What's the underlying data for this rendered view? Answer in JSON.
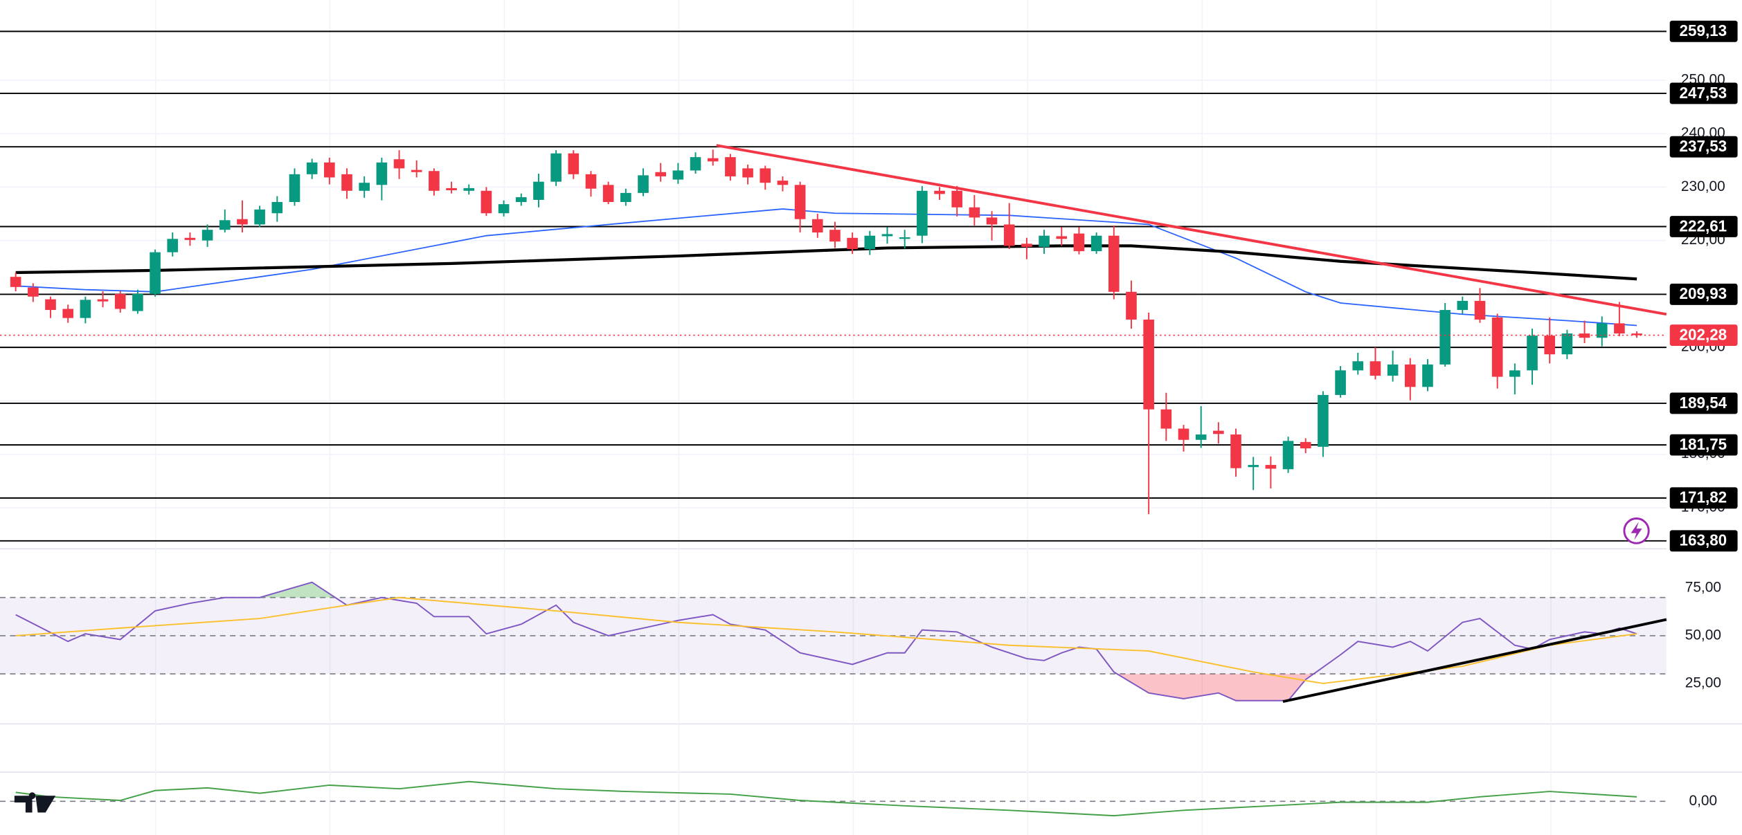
{
  "chart_data": [
    {
      "type": "candlestick",
      "xlim": [
        -0.9,
        94.7
      ],
      "ylim": [
        162.1,
        265.0
      ],
      "yticks": [
        {
          "value": 170,
          "label": "170,00"
        },
        {
          "value": 180,
          "label": "180,00"
        },
        {
          "value": 190,
          "label": "190,00"
        },
        {
          "value": 200,
          "label": "200,00"
        },
        {
          "value": 210,
          "label": "210,00"
        },
        {
          "value": 220,
          "label": "220,00"
        },
        {
          "value": 230,
          "label": "230,00"
        },
        {
          "value": 240,
          "label": "240,00"
        },
        {
          "value": 250,
          "label": "250,00"
        }
      ],
      "grid": true,
      "up_color": "#089981",
      "down_color": "#f23645",
      "open": [
        213.2,
        211.2,
        209.0,
        207.2,
        205.5,
        209.0,
        210.0,
        206.8,
        210.0,
        217.8,
        220.5,
        220.0,
        222.0,
        224.0,
        223.0,
        225.1,
        227.2,
        232.4,
        234.6,
        232.4,
        229.3,
        230.4,
        235.2,
        233.2,
        233.0,
        229.8,
        229.3,
        229.3,
        225.1,
        227.2,
        227.6,
        231.0,
        236.3,
        232.4,
        230.4,
        227.2,
        228.9,
        232.8,
        231.4,
        233.1,
        235.4,
        235.6,
        233.5,
        233.5,
        231.2,
        230.4,
        224.0,
        222.0,
        220.5,
        218.4,
        220.8,
        220.3,
        220.9,
        229.3,
        229.3,
        226.2,
        224.3,
        223.0,
        219.4,
        218.8,
        220.8,
        221.3,
        218.0,
        220.9,
        210.4,
        205.2,
        188.4,
        184.8,
        182.7,
        184.4,
        183.7,
        177.6,
        178.0,
        177.2,
        182.3,
        181.4,
        191.1,
        195.7,
        197.4,
        194.7,
        196.8,
        192.6,
        196.8,
        207.0,
        208.7,
        205.6,
        194.5,
        195.7,
        202.2,
        198.7,
        202.6,
        201.8,
        204.5,
        202.6
      ],
      "high": [
        214,
        212,
        209.5,
        208,
        209.5,
        210.5,
        210.5,
        210.8,
        218.3,
        221.5,
        221.5,
        223,
        225.8,
        227.5,
        226.5,
        228.3,
        233.5,
        235.3,
        235.5,
        233.5,
        232,
        235.5,
        236.9,
        235,
        233.5,
        231,
        230.5,
        230,
        227.5,
        228.8,
        232.5,
        236.9,
        236.9,
        233,
        231,
        229.7,
        233.5,
        234.5,
        234.5,
        236.5,
        237,
        236.2,
        234.2,
        234,
        232,
        231,
        225,
        223.5,
        221.5,
        221.8,
        222.5,
        222,
        230.2,
        230,
        230.2,
        228.5,
        225.5,
        227,
        220.5,
        222,
        222.5,
        222.5,
        221.5,
        222.8,
        212.5,
        206.5,
        191.5,
        185.5,
        189,
        186,
        184.8,
        179.5,
        179.6,
        183.3,
        183,
        191.8,
        196.5,
        199,
        200,
        199.4,
        198,
        197.8,
        208.3,
        209.5,
        211.1,
        206.3,
        197,
        203.5,
        205.6,
        203.3,
        205,
        205.8,
        208.5,
        203
      ],
      "low": [
        210.5,
        208.5,
        205.5,
        204.6,
        204.5,
        207.5,
        206.5,
        206.3,
        209.5,
        217,
        219,
        218.8,
        221.5,
        221.5,
        222.5,
        223.5,
        226.5,
        231.5,
        230.5,
        227.8,
        228,
        227.5,
        231.5,
        231.8,
        228.4,
        228.8,
        228.6,
        224.6,
        224.5,
        226.5,
        226.2,
        230.2,
        231.5,
        228.2,
        226.8,
        226.5,
        228.3,
        231,
        230.6,
        232.5,
        234,
        231.2,
        230.5,
        229.5,
        229.2,
        221.5,
        220.5,
        218.6,
        217.5,
        217.3,
        219.4,
        218.5,
        219.5,
        227.6,
        224.5,
        222.8,
        220,
        218.4,
        216.5,
        217.5,
        219,
        217.4,
        217.5,
        209,
        203.5,
        168.8,
        182.5,
        180.5,
        181.2,
        182,
        175.8,
        173.3,
        173.6,
        176.5,
        180.2,
        179.5,
        190.6,
        194.9,
        194,
        193.6,
        190.1,
        191.8,
        196.4,
        206.3,
        204.6,
        192.3,
        191.2,
        193,
        197,
        197.8,
        200.8,
        200.2,
        202.1,
        201.8
      ],
      "close": [
        211.3,
        209.5,
        207.0,
        205.5,
        208.9,
        208.6,
        207.2,
        210.0,
        217.8,
        220.3,
        220.1,
        222.0,
        223.8,
        223.0,
        225.8,
        227.2,
        232.4,
        234.6,
        231.8,
        229.3,
        230.8,
        234.6,
        233.5,
        232.8,
        229.3,
        229.4,
        229.8,
        225.1,
        226.8,
        228.1,
        231.0,
        236.3,
        232.4,
        229.7,
        227.2,
        228.9,
        232.2,
        232.0,
        233.1,
        235.6,
        234.8,
        232.0,
        231.8,
        230.8,
        230.4,
        224.0,
        221.5,
        219.8,
        218.4,
        220.9,
        221.2,
        220.6,
        229.3,
        228.7,
        226.2,
        224.3,
        223.0,
        219.0,
        218.8,
        220.9,
        220.3,
        218.0,
        220.9,
        210.4,
        205.2,
        188.4,
        184.8,
        182.7,
        183.7,
        183.8,
        177.4,
        178.0,
        177.3,
        182.5,
        181.1,
        191.1,
        195.7,
        197.4,
        194.7,
        196.8,
        192.6,
        196.8,
        207.0,
        208.7,
        205.2,
        194.5,
        195.7,
        202.2,
        198.7,
        202.6,
        201.8,
        204.5,
        202.6,
        202.28
      ],
      "overlays": [
        {
          "color": "#2962ff",
          "x": [
            0,
            4,
            8,
            17,
            27,
            34,
            44,
            47,
            57,
            65,
            70,
            74,
            76,
            83,
            89,
            93
          ],
          "values": [
            211.5,
            210.8,
            210.4,
            214.6,
            220.9,
            223.0,
            225.9,
            225.1,
            224.7,
            223.0,
            216.7,
            210.4,
            208.3,
            206.2,
            205.0,
            204.1
          ]
        },
        {
          "color": "#000000",
          "x": [
            0,
            8,
            25,
            38,
            50,
            60,
            64,
            70,
            76,
            86,
            93
          ],
          "values": [
            214.0,
            214.4,
            215.7,
            217.1,
            218.6,
            219.0,
            219.0,
            217.8,
            216.1,
            214.2,
            212.8
          ]
        }
      ],
      "trendlines": [
        {
          "color": "#f23645",
          "x": [
            40.2,
            94.7
          ],
          "values": [
            237.8,
            206.2
          ]
        }
      ],
      "levels": [
        {
          "value": 259.13,
          "label": "259,13"
        },
        {
          "value": 247.53,
          "label": "247,53"
        },
        {
          "value": 237.53,
          "label": "237,53"
        },
        {
          "value": 222.61,
          "label": "222,61"
        },
        {
          "value": 209.93,
          "label": "209,93"
        },
        {
          "value": 189.54,
          "label": "189,54"
        },
        {
          "value": 181.75,
          "label": "181,75"
        },
        {
          "value": 171.82,
          "label": "171,82"
        },
        {
          "value": 163.8,
          "label": "163,80"
        }
      ],
      "hlines": [
        200
      ],
      "last": {
        "value": 202.28,
        "label": "202,28"
      },
      "last_color": "#f23645"
    },
    {
      "type": "line",
      "xlim": [
        -0.9,
        94.7
      ],
      "ylim": [
        3.8,
        92
      ],
      "yticks": [
        {
          "value": 25,
          "label": "25,00"
        },
        {
          "value": 50,
          "label": "50,00"
        },
        {
          "value": 75,
          "label": "75,00"
        }
      ],
      "levels": [
        70,
        50,
        30
      ],
      "band_color": "#7e57c2",
      "overbought_color": "#4caf50",
      "oversold_color": "#f23645",
      "series": [
        {
          "color": "#7e57c2",
          "x": [
            0,
            3,
            4,
            6,
            8,
            10,
            12,
            14,
            17,
            19,
            21,
            23,
            24,
            26,
            27,
            29,
            31,
            32,
            34,
            36,
            38,
            40,
            41,
            43,
            45,
            48,
            50,
            51,
            52,
            54,
            56,
            58,
            59,
            60,
            61,
            62,
            63,
            65,
            67,
            69,
            70,
            73,
            74,
            76,
            77,
            79,
            80,
            81,
            83,
            84,
            86,
            87,
            88,
            90,
            91,
            92,
            93
          ],
          "values": [
            61,
            47,
            51,
            48,
            63,
            67,
            70,
            70,
            78,
            66,
            70,
            67,
            60,
            60,
            51,
            56,
            66,
            57,
            50,
            54,
            58,
            61,
            56,
            53,
            41,
            35,
            41,
            41,
            53,
            52,
            44,
            38,
            37,
            41,
            44,
            43,
            31,
            20,
            17,
            20,
            16,
            16,
            27,
            40,
            47,
            44,
            47,
            42,
            57,
            59,
            45,
            43,
            48,
            52,
            51,
            54,
            51
          ]
        },
        {
          "color": "#fbc02d",
          "x": [
            0,
            6,
            14,
            19,
            22,
            31,
            38,
            47,
            57,
            65,
            71,
            75,
            83,
            88,
            93
          ],
          "values": [
            50,
            54,
            59,
            66,
            70,
            63,
            57,
            52,
            45,
            42,
            31,
            25,
            34,
            45,
            51
          ]
        }
      ],
      "trendlines": [
        {
          "color": "#000000",
          "x": [
            72.7,
            94.7
          ],
          "values": [
            15.5,
            58.5
          ]
        }
      ]
    },
    {
      "type": "line",
      "xlim": [
        -0.9,
        94.7
      ],
      "ylim": [
        -3,
        3
      ],
      "yticks": [
        {
          "value": 0,
          "label": "0,00"
        }
      ],
      "levels": [
        0
      ],
      "series": [
        {
          "color": "#43a047",
          "x": [
            0,
            2,
            6,
            8,
            11,
            14,
            18,
            22,
            26,
            31,
            35,
            41,
            45,
            51,
            57,
            63,
            67,
            72,
            76,
            81,
            84,
            88,
            93
          ],
          "values": [
            1,
            0.5,
            0.1,
            1.2,
            1.5,
            0.9,
            1.8,
            1.4,
            2.2,
            1.4,
            1.1,
            0.8,
            0.1,
            -0.5,
            -1,
            -1.6,
            -1,
            -0.5,
            -0.1,
            -0.1,
            0.5,
            1.1,
            0.5
          ]
        }
      ]
    }
  ]
}
